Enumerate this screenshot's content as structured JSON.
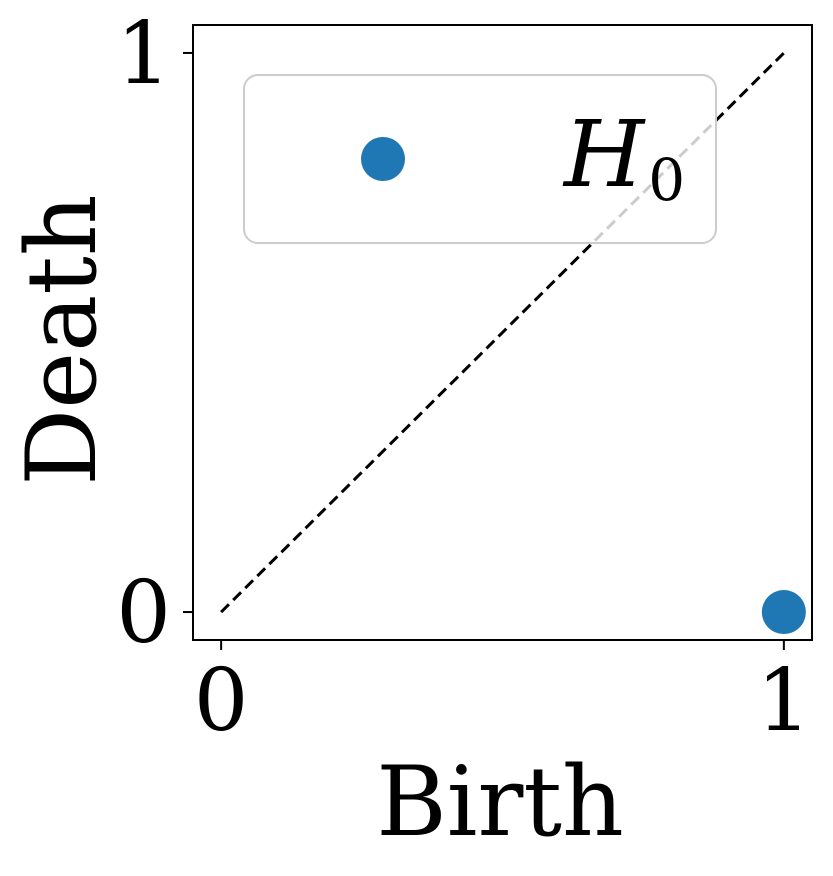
{
  "chart_data": {
    "type": "scatter",
    "xlabel": "Birth",
    "ylabel": "Death",
    "xlim": [
      -0.05,
      1.05
    ],
    "ylim": [
      -0.05,
      1.05
    ],
    "xticks": [
      {
        "value": 0,
        "label": "0"
      },
      {
        "value": 1,
        "label": "1"
      }
    ],
    "yticks": [
      {
        "value": 0,
        "label": "0"
      },
      {
        "value": 1,
        "label": "1"
      }
    ],
    "grid": false,
    "legend_position": "upper-left",
    "diagonal": {
      "from": [
        0,
        0
      ],
      "to": [
        1,
        1
      ],
      "style": "dashed",
      "color": "#000000"
    },
    "series": [
      {
        "name": "H",
        "name_subscript": "0",
        "color": "#1f77b4",
        "points": [
          {
            "x": 1,
            "y": 0
          }
        ]
      }
    ]
  }
}
